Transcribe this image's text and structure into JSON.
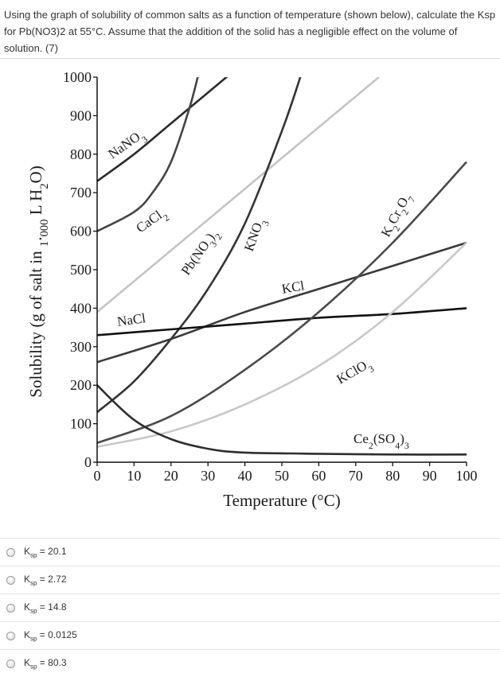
{
  "question": {
    "text": "Using the graph of solubility of common salts as a function of temperature (shown below), calculate the Ksp for Pb(NO3)2 at 55°C. Assume that the addition of the solid has a negligible effect on the volume of solution. (7)"
  },
  "chart_data": {
    "type": "line",
    "title": "",
    "xlabel": "Temperature (°C)",
    "ylabel": "Solubility (g of salt in 1.000 L H2O)",
    "xlim": [
      0,
      100
    ],
    "ylim": [
      0,
      1000
    ],
    "xticks": [
      "0",
      "10",
      "20",
      "30",
      "40",
      "50",
      "60",
      "70",
      "80",
      "90",
      "100"
    ],
    "yticks": [
      "0",
      "100",
      "200",
      "300",
      "400",
      "500",
      "600",
      "700",
      "800",
      "900",
      "1000"
    ],
    "grid": false,
    "series": [
      {
        "name": "NaNO3",
        "color": "#2b2b2b",
        "x": [
          0,
          10,
          20,
          30,
          40
        ],
        "y": [
          730,
          800,
          880,
          960,
          1040
        ]
      },
      {
        "name": "CaCl2",
        "color": "#444444",
        "x": [
          0,
          10,
          15,
          20,
          25,
          28
        ],
        "y": [
          600,
          650,
          700,
          780,
          920,
          1030
        ]
      },
      {
        "name": "Pb(NO3)2",
        "color": "#c4c4c4",
        "x": [
          0,
          10,
          20,
          30,
          40,
          50,
          60,
          70,
          80
        ],
        "y": [
          390,
          470,
          550,
          630,
          710,
          790,
          870,
          950,
          1030
        ]
      },
      {
        "name": "KNO3",
        "color": "#333333",
        "x": [
          0,
          10,
          20,
          30,
          40,
          50,
          55
        ],
        "y": [
          130,
          210,
          320,
          450,
          620,
          860,
          1000
        ]
      },
      {
        "name": "KCl",
        "color": "#3a3a3a",
        "x": [
          0,
          20,
          40,
          60,
          80,
          100
        ],
        "y": [
          260,
          320,
          390,
          450,
          510,
          570
        ]
      },
      {
        "name": "NaCl",
        "color": "#111111",
        "x": [
          0,
          20,
          40,
          60,
          80,
          100
        ],
        "y": [
          330,
          345,
          360,
          375,
          385,
          400
        ]
      },
      {
        "name": "K2Cr2O7",
        "color": "#4a4a4a",
        "x": [
          0,
          20,
          40,
          60,
          80,
          100
        ],
        "y": [
          50,
          120,
          240,
          390,
          570,
          780
        ]
      },
      {
        "name": "KClO3",
        "color": "#c8c8c8",
        "x": [
          0,
          20,
          40,
          60,
          80,
          100
        ],
        "y": [
          40,
          80,
          150,
          250,
          390,
          570
        ]
      },
      {
        "name": "Ce2(SO4)3",
        "color": "#2e2e2e",
        "x": [
          0,
          10,
          20,
          30,
          40,
          60,
          80,
          100
        ],
        "y": [
          200,
          110,
          60,
          35,
          25,
          22,
          20,
          20
        ]
      }
    ],
    "curve_labels": [
      {
        "series": "NaNO3",
        "text": "NaNO3"
      },
      {
        "series": "CaCl2",
        "text": "CaCl2"
      },
      {
        "series": "Pb(NO3)2",
        "text": "Pb(NO3)2"
      },
      {
        "series": "KNO3",
        "text": "KNO3"
      },
      {
        "series": "KCl",
        "text": "KCl"
      },
      {
        "series": "NaCl",
        "text": "NaCl"
      },
      {
        "series": "K2Cr2O7",
        "text": "K2Cr2O7"
      },
      {
        "series": "KClO3",
        "text": "KClO3"
      },
      {
        "series": "Ce2(SO4)3",
        "text": "Ce2(SO4)3"
      }
    ]
  },
  "options": [
    {
      "prefix": "K",
      "sub": "sp",
      "value": " = 20.1"
    },
    {
      "prefix": "K",
      "sub": "sp",
      "value": " = 2.72"
    },
    {
      "prefix": "K",
      "sub": "sp",
      "value": " = 14.8"
    },
    {
      "prefix": "K",
      "sub": "sp",
      "value": " = 0.0125"
    },
    {
      "prefix": "K",
      "sub": "sp",
      "value": " = 80.3"
    }
  ]
}
